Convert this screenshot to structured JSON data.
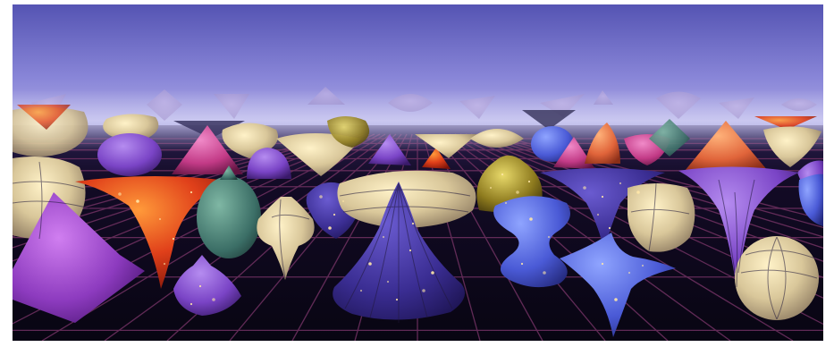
{
  "scene": {
    "subject": "rendered-surfaces-of-revolution",
    "palette": {
      "sky_top": "#5a58b6",
      "sky_mid": "#8a86d6",
      "haze": "#b9b6e6",
      "floor": "#0b0718",
      "grid": "#6b2f5e"
    }
  }
}
